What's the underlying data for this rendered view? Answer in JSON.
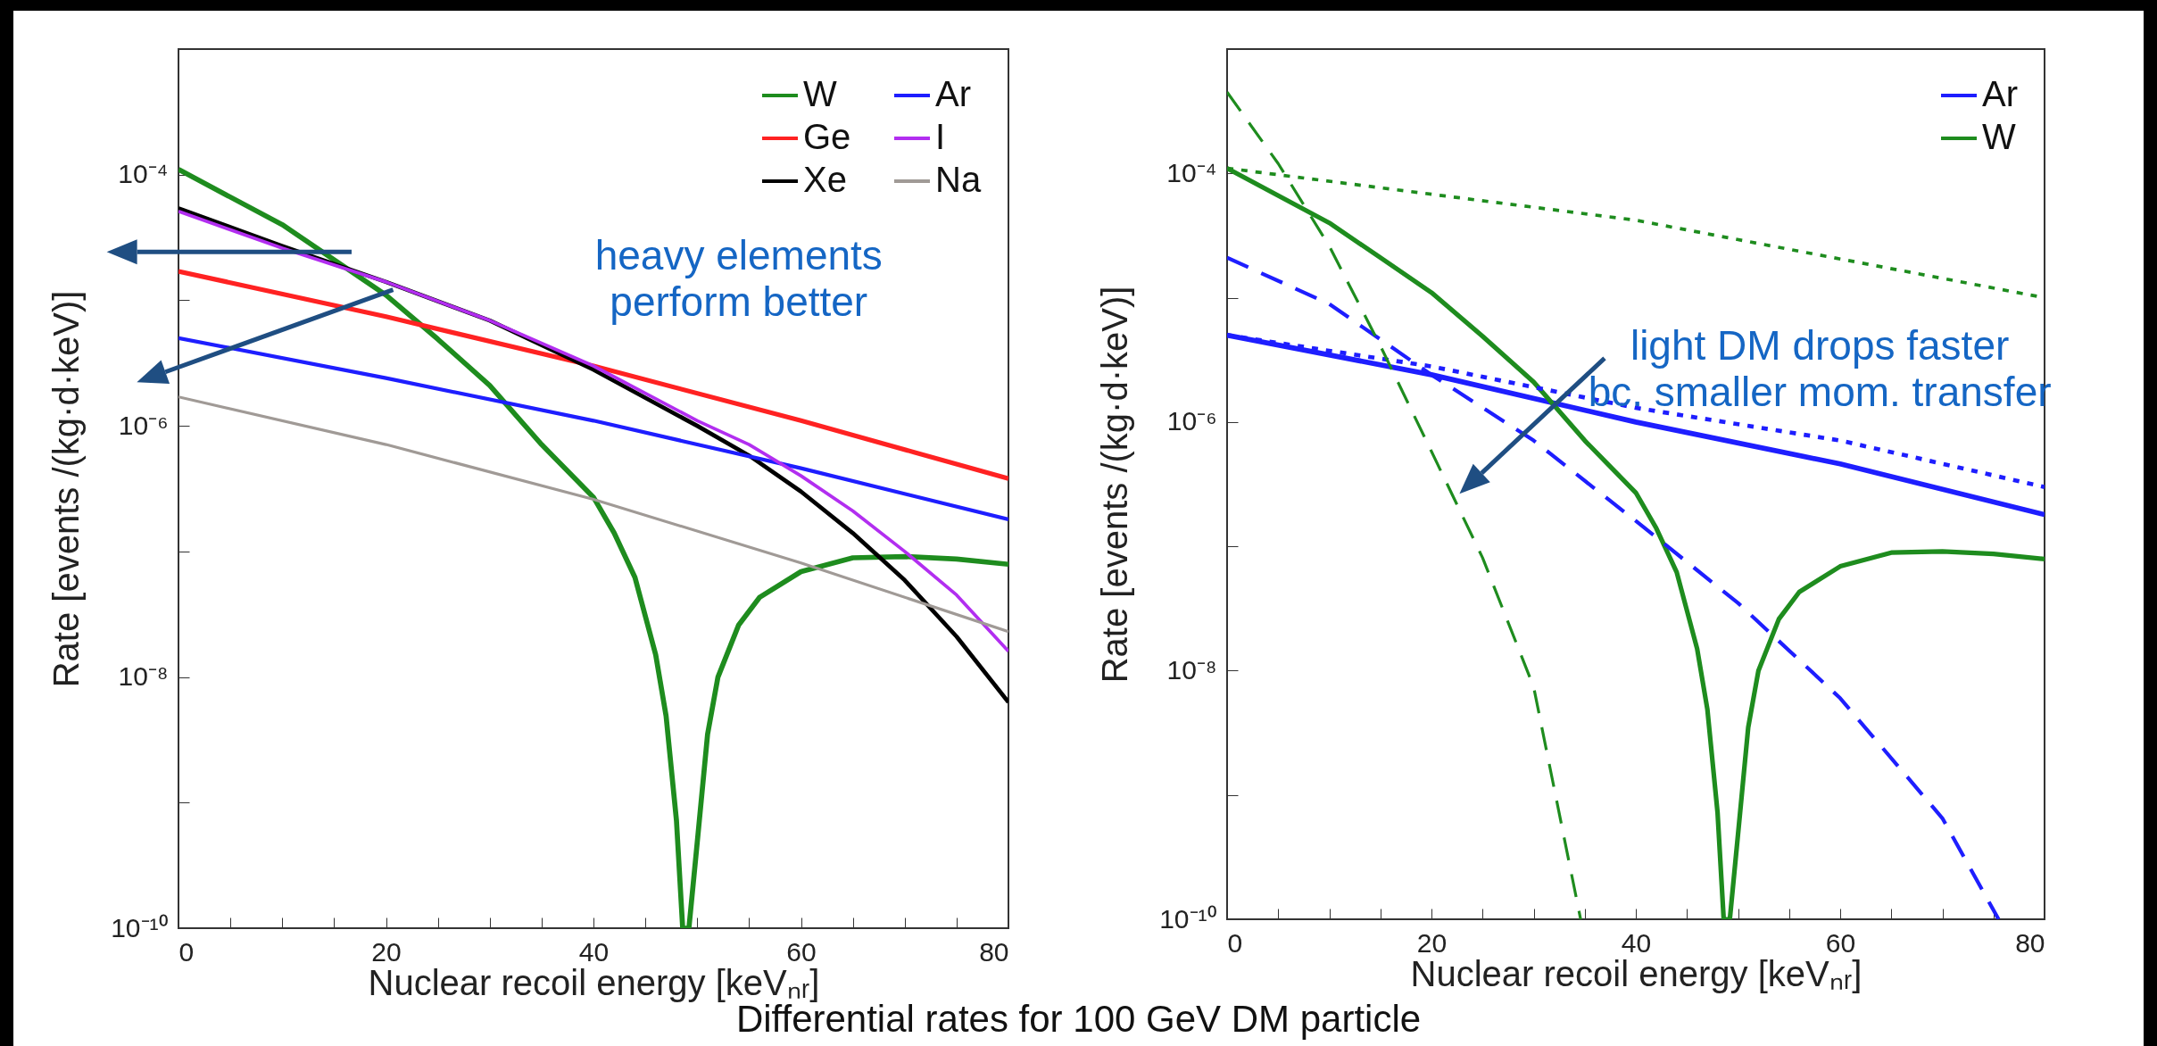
{
  "chart_data": [
    {
      "type": "line",
      "xlabel": "Nuclear recoil energy [keVₙᵣ]",
      "ylabel": "Rate [events /(kg·d·keV)]",
      "log": "y",
      "xlim": [
        0,
        80
      ],
      "ylim": [
        1e-10,
        0.001
      ],
      "xticks": [
        0,
        {
          "value": 5,
          "label": null
        },
        {
          "value": 10,
          "label": null
        },
        {
          "value": 15,
          "label": null
        },
        20,
        {
          "value": 25,
          "label": null
        },
        {
          "value": 30,
          "label": null
        },
        {
          "value": 35,
          "label": null
        },
        40,
        {
          "value": 45,
          "label": null
        },
        {
          "value": 50,
          "label": null
        },
        {
          "value": 55,
          "label": null
        },
        60,
        {
          "value": 65,
          "label": null
        },
        {
          "value": 70,
          "label": null
        },
        {
          "value": 75,
          "label": null
        },
        80
      ],
      "yticks": [
        {
          "value": 1e-10,
          "label": "10⁻¹⁰"
        },
        {
          "value": 1e-09,
          "label": null
        },
        {
          "value": 1e-08,
          "label": "10⁻⁸"
        },
        {
          "value": 1e-07,
          "label": null
        },
        {
          "value": 1e-06,
          "label": "10⁻⁶"
        },
        {
          "value": 1e-05,
          "label": null
        },
        {
          "value": 0.0001,
          "label": "10⁻⁴"
        },
        {
          "value": 0.001,
          "label": null
        }
      ],
      "legend": "top right",
      "annotations": [
        "heavy elements\nperform better",
        "Differential rates for 100 GeV DM particle"
      ],
      "series": [
        {
          "name": "W",
          "color": "#1e8c1e",
          "x": [
            0,
            10,
            15,
            20,
            25,
            30,
            35,
            40,
            42,
            44,
            46,
            47,
            48,
            48.6,
            49.2,
            50,
            51,
            52,
            54,
            56,
            60,
            65,
            70,
            75,
            80
          ],
          "values": [
            0.00011,
            4e-05,
            2.1e-05,
            1.1e-05,
            4.9e-06,
            2.1e-06,
            7.1e-07,
            2.7e-07,
            1.4e-07,
            6.2e-08,
            1.5e-08,
            4.9e-09,
            7.2e-10,
            1e-10,
            1e-10,
            4.8e-10,
            3.5e-09,
            1e-08,
            2.6e-08,
            4.3e-08,
            6.9e-08,
            8.9e-08,
            9.1e-08,
            8.7e-08,
            7.9e-08
          ]
        },
        {
          "name": "Ge",
          "color": "#ff2222",
          "x": [
            0,
            20,
            40,
            60,
            80
          ],
          "values": [
            1.7e-05,
            7.4e-06,
            3e-06,
            1.1e-06,
            3.8e-07
          ]
        },
        {
          "name": "Xe",
          "color": "#000000",
          "x": [
            0,
            10,
            20,
            30,
            40,
            50,
            55,
            60,
            65,
            70,
            75,
            80
          ],
          "values": [
            5.4e-05,
            2.7e-05,
            1.4e-05,
            6.9e-06,
            2.8e-06,
            1e-06,
            5.8e-07,
            3e-07,
            1.4e-07,
            5.9e-08,
            2.1e-08,
            6.3e-09
          ]
        },
        {
          "name": "Ar",
          "color": "#1e1eff",
          "x": [
            0,
            20,
            40,
            60,
            80
          ],
          "values": [
            5e-06,
            2.4e-06,
            1.1e-06,
            4.6e-07,
            1.8e-07
          ]
        },
        {
          "name": "I",
          "color": "#b22ef0",
          "x": [
            0,
            10,
            20,
            30,
            40,
            50,
            55,
            60,
            65,
            70,
            75,
            80
          ],
          "values": [
            5.1e-05,
            2.6e-05,
            1.4e-05,
            6.9e-06,
            3e-06,
            1.1e-06,
            7.1e-07,
            4e-07,
            2.1e-07,
            1e-07,
            4.5e-08,
            1.6e-08
          ]
        },
        {
          "name": "Na",
          "color": "#a09a96",
          "x": [
            0,
            20,
            40,
            60,
            80
          ],
          "values": [
            1.7e-06,
            7.1e-07,
            2.6e-07,
            8.1e-08,
            2.3e-08
          ]
        }
      ]
    },
    {
      "type": "line",
      "xlabel": "Nuclear recoil energy [keVₙᵣ]",
      "ylabel": "Rate [events /(kg·d·keV)]",
      "log": "y",
      "xlim": [
        0,
        80
      ],
      "ylim": [
        1e-10,
        0.001
      ],
      "xticks": [
        0,
        {
          "value": 5,
          "label": null
        },
        {
          "value": 10,
          "label": null
        },
        {
          "value": 15,
          "label": null
        },
        20,
        {
          "value": 25,
          "label": null
        },
        {
          "value": 30,
          "label": null
        },
        {
          "value": 35,
          "label": null
        },
        40,
        {
          "value": 45,
          "label": null
        },
        {
          "value": 50,
          "label": null
        },
        {
          "value": 55,
          "label": null
        },
        60,
        {
          "value": 65,
          "label": null
        },
        {
          "value": 70,
          "label": null
        },
        {
          "value": 75,
          "label": null
        },
        80
      ],
      "yticks": [
        {
          "value": 1e-10,
          "label": "10⁻¹⁰"
        },
        {
          "value": 1e-09,
          "label": null
        },
        {
          "value": 1e-08,
          "label": "10⁻⁸"
        },
        {
          "value": 1e-07,
          "label": null
        },
        {
          "value": 1e-06,
          "label": "10⁻⁶"
        },
        {
          "value": 1e-05,
          "label": null
        },
        {
          "value": 0.0001,
          "label": "10⁻⁴"
        },
        {
          "value": 0.001,
          "label": null
        }
      ],
      "legend": "top right",
      "annotations": [
        "light DM drops faster\nbc. smaller mom. transfer"
      ],
      "series": [
        {
          "name": "Ar",
          "color": "#1e1eff",
          "x": [
            0,
            20,
            40,
            60,
            80
          ],
          "values": [
            5e-06,
            2.4e-06,
            1e-06,
            4.6e-07,
            1.8e-07
          ]
        },
        {
          "name": "W",
          "color": "#1e8c1e",
          "x": [
            0,
            10,
            15,
            20,
            25,
            30,
            35,
            40,
            42,
            44,
            46,
            47,
            48,
            48.6,
            49.2,
            50,
            51,
            52,
            54,
            56,
            60,
            65,
            70,
            75,
            80
          ],
          "values": [
            0.00011,
            4e-05,
            2.1e-05,
            1.1e-05,
            4.9e-06,
            2.1e-06,
            7.1e-07,
            2.7e-07,
            1.4e-07,
            6.2e-08,
            1.5e-08,
            4.9e-09,
            7.2e-10,
            1e-10,
            1e-10,
            4.8e-10,
            3.5e-09,
            1e-08,
            2.6e-08,
            4.3e-08,
            6.9e-08,
            8.9e-08,
            9.1e-08,
            8.7e-08,
            7.9e-08
          ]
        },
        {
          "color": "#1e1eff",
          "line_style": "dotted",
          "x": [
            0,
            20,
            40,
            60,
            80
          ],
          "values": [
            5e-06,
            2.8e-06,
            1.3e-06,
            7.1e-07,
            3e-07
          ]
        },
        {
          "color": "#1e1eff",
          "line_style": "dashed",
          "x": [
            0,
            10,
            20,
            30,
            40,
            50,
            60,
            70,
            75.5
          ],
          "values": [
            2.1e-05,
            8.9e-06,
            2.4e-06,
            7.1e-07,
            1.6e-07,
            3.5e-08,
            6e-09,
            6.5e-10,
            1e-10
          ]
        },
        {
          "color": "#1e8c1e",
          "line_style": "dotted",
          "x": [
            0,
            40,
            80
          ],
          "values": [
            0.00011,
            4.2e-05,
            1e-05
          ]
        },
        {
          "color": "#1e8c1e",
          "line_style": "dashed",
          "x": [
            0,
            5,
            10,
            15,
            20,
            25,
            30,
            34.6
          ],
          "values": [
            0.00045,
            0.00012,
            2.6e-05,
            4.1e-06,
            5.8e-07,
            8.1e-08,
            7.4e-09,
            1e-10
          ]
        }
      ]
    }
  ]
}
